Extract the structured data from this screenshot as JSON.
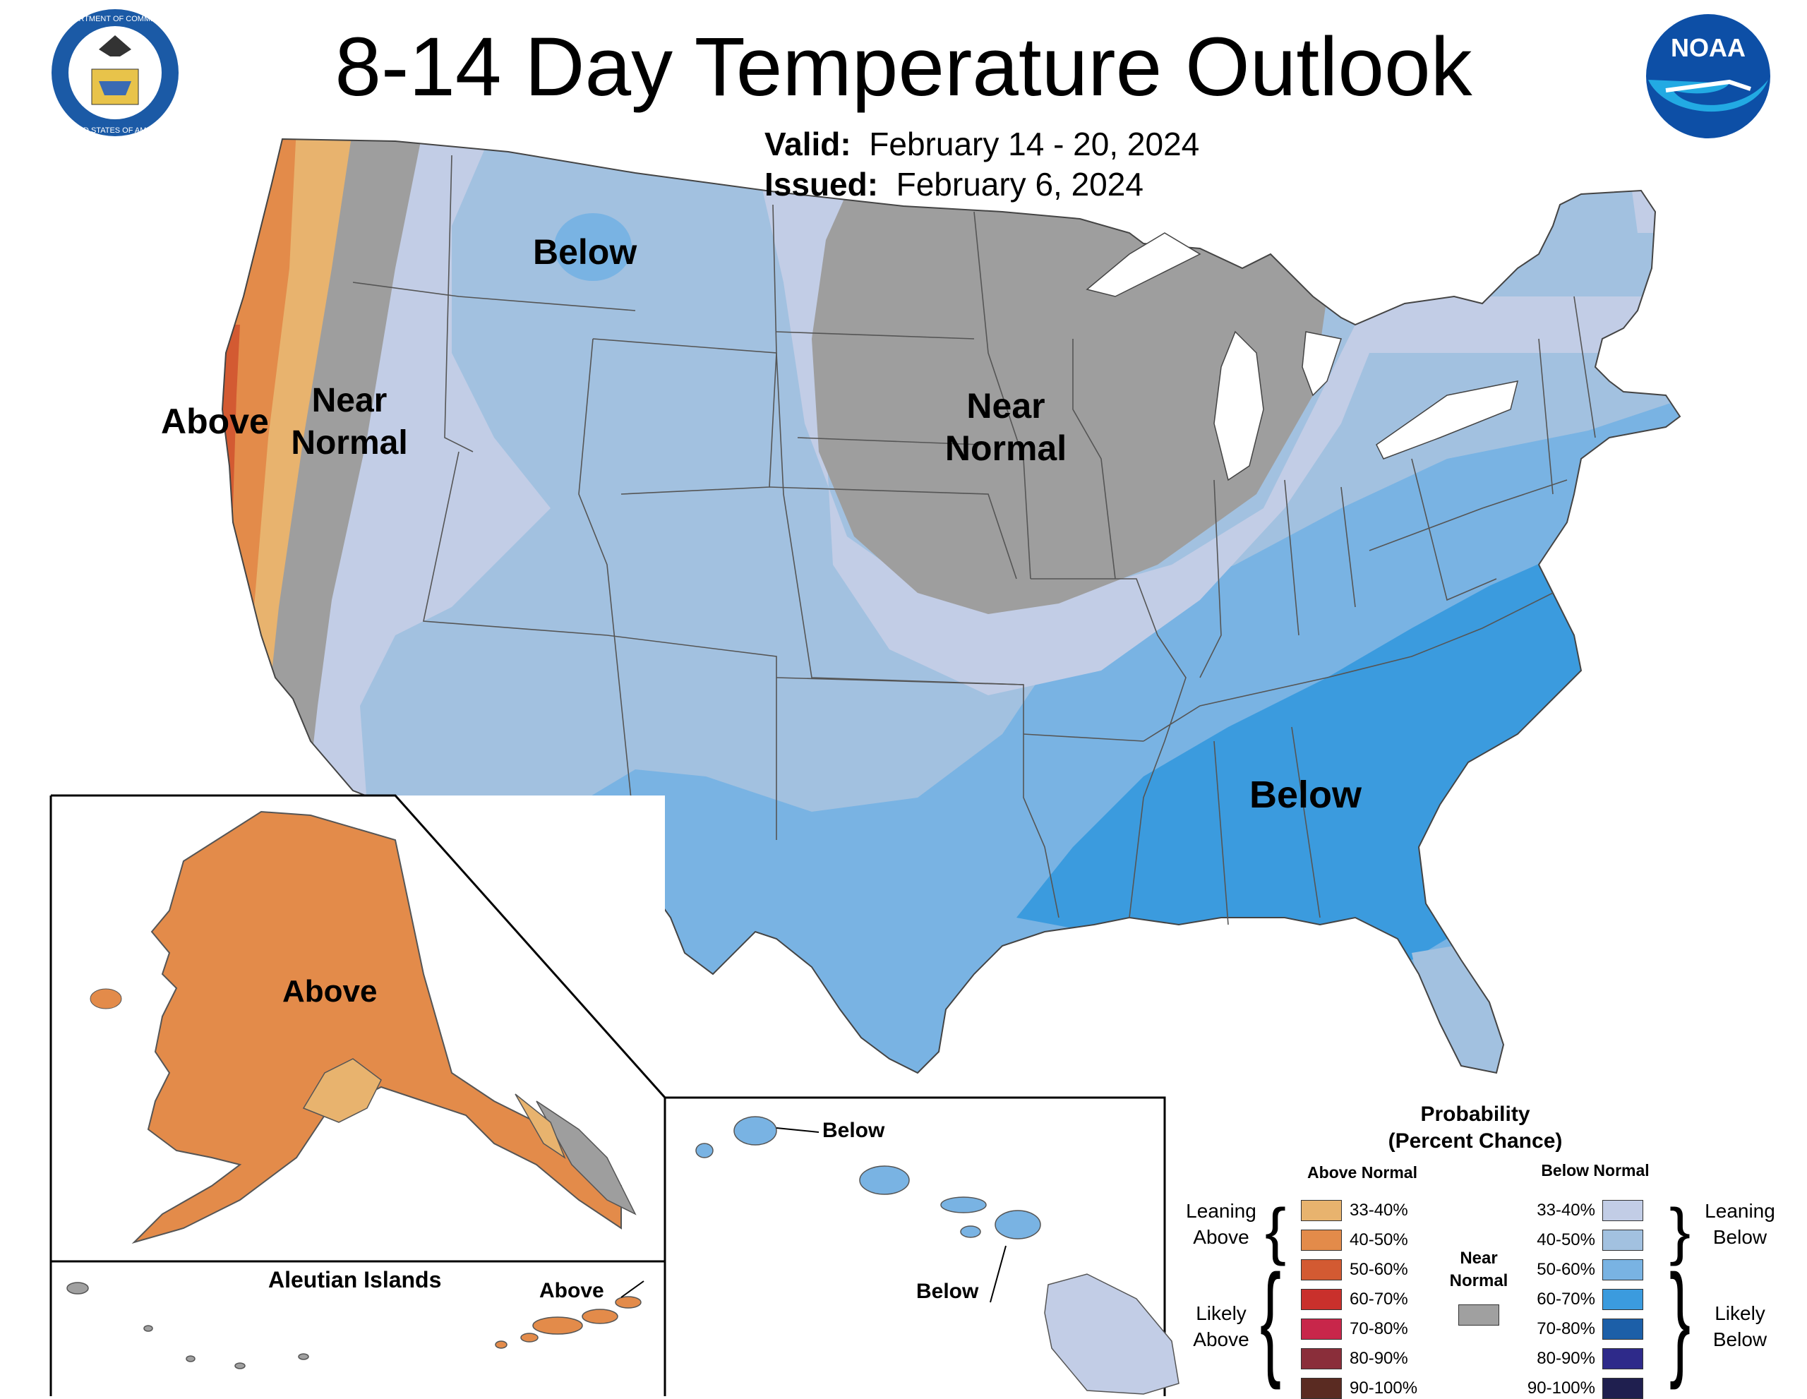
{
  "title": "8-14 Day Temperature Outlook",
  "valid": {
    "label": "Valid:",
    "value": "February 14 - 20, 2024"
  },
  "issued": {
    "label": "Issued:",
    "value": "February 6, 2024"
  },
  "logos": {
    "doc": {
      "ring_top": "DEPARTMENT OF COMMERCE",
      "ring_bottom": "UNITED STATES OF AMERICA"
    },
    "noaa": {
      "text": "NOAA"
    }
  },
  "map_labels": {
    "below_north": "Below",
    "above_west": "Above",
    "near_normal_west": "Near Normal",
    "near_normal_central": "Near Normal",
    "below_southeast": "Below",
    "alaska_above": "Above",
    "aleutian_title": "Aleutian Islands",
    "aleutian_above": "Above",
    "hawaii_below_1": "Below",
    "hawaii_below_2": "Below"
  },
  "legend": {
    "title_1": "Probability",
    "title_2": "(Percent Chance)",
    "above_header": "Above Normal",
    "below_header": "Below Normal",
    "leaning_above": "Leaning Above",
    "likely_above": "Likely Above",
    "leaning_below": "Leaning Below",
    "likely_below": "Likely Below",
    "near_normal": "Near Normal",
    "near_normal_color": "#a0a0a0",
    "above_items": [
      {
        "label": "33-40%",
        "color": "#e8b36e"
      },
      {
        "label": "40-50%",
        "color": "#e38b4a"
      },
      {
        "label": "50-60%",
        "color": "#d35a32"
      },
      {
        "label": "60-70%",
        "color": "#c9302c"
      },
      {
        "label": "70-80%",
        "color": "#c8264a"
      },
      {
        "label": "80-90%",
        "color": "#8a2e3a"
      },
      {
        "label": "90-100%",
        "color": "#5a2b22"
      }
    ],
    "below_items": [
      {
        "label": "33-40%",
        "color": "#c2cde6"
      },
      {
        "label": "40-50%",
        "color": "#a2c1e0"
      },
      {
        "label": "50-60%",
        "color": "#79b3e3"
      },
      {
        "label": "60-70%",
        "color": "#3b9bde"
      },
      {
        "label": "70-80%",
        "color": "#1c5fa8"
      },
      {
        "label": "80-90%",
        "color": "#2e2a8a"
      },
      {
        "label": "90-100%",
        "color": "#1f1f4f"
      }
    ]
  }
}
